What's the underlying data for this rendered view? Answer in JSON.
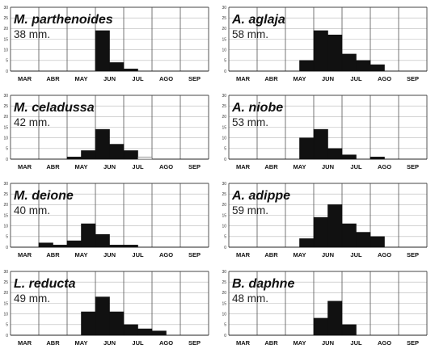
{
  "chart_data": [
    {
      "type": "bar",
      "title": "M. parthenoides",
      "subtitle": "38 mm.",
      "months": [
        "MAR",
        "ABR",
        "MAY",
        "JUN",
        "JUL",
        "AGO",
        "SEP"
      ],
      "yticks": [
        0,
        5,
        10,
        15,
        20,
        25,
        30
      ],
      "ylim": [
        0,
        30
      ],
      "bars": [
        0,
        0,
        0,
        0,
        0,
        0,
        19,
        4,
        1,
        0,
        0,
        0,
        0,
        0
      ]
    },
    {
      "type": "bar",
      "title": "A. aglaja",
      "subtitle": "58 mm.",
      "months": [
        "MAR",
        "ABR",
        "MAY",
        "JUN",
        "JUL",
        "AGO",
        "SEP"
      ],
      "yticks": [
        0,
        5,
        10,
        15,
        20,
        25,
        30
      ],
      "ylim": [
        0,
        30
      ],
      "bars": [
        0,
        0,
        0,
        0,
        0,
        5,
        19,
        17,
        8,
        5,
        3,
        0,
        0,
        0
      ]
    },
    {
      "type": "bar",
      "title": "M. celadussa",
      "subtitle": "42 mm.",
      "months": [
        "MAR",
        "ABR",
        "MAY",
        "JUN",
        "JUL",
        "AGO",
        "SEP"
      ],
      "yticks": [
        0,
        5,
        10,
        15,
        20,
        25,
        30
      ],
      "ylim": [
        0,
        30
      ],
      "bars": [
        0,
        0,
        0,
        0,
        1,
        4,
        14,
        7,
        4,
        1,
        0,
        0,
        0,
        0
      ],
      "open_bars": [
        9
      ]
    },
    {
      "type": "bar",
      "title": "A. niobe",
      "subtitle": "53 mm.",
      "months": [
        "MAR",
        "ABR",
        "MAY",
        "JUN",
        "JUL",
        "AGO",
        "SEP"
      ],
      "yticks": [
        0,
        5,
        10,
        15,
        20,
        25,
        30
      ],
      "ylim": [
        0,
        30
      ],
      "bars": [
        0,
        0,
        0,
        0,
        0,
        10,
        14,
        5,
        2,
        0,
        1,
        0,
        0,
        0
      ]
    },
    {
      "type": "bar",
      "title": "M. deione",
      "subtitle": "40 mm.",
      "months": [
        "MAR",
        "ABR",
        "MAY",
        "JUN",
        "JUL",
        "AGO",
        "SEP"
      ],
      "yticks": [
        0,
        5,
        10,
        15,
        20,
        25,
        30
      ],
      "ylim": [
        0,
        30
      ],
      "bars": [
        0,
        0,
        2,
        1,
        3,
        11,
        6,
        1,
        1,
        0,
        0,
        0,
        0,
        0
      ]
    },
    {
      "type": "bar",
      "title": "A. adippe",
      "subtitle": "59 mm.",
      "months": [
        "MAR",
        "ABR",
        "MAY",
        "JUN",
        "JUL",
        "AGO",
        "SEP"
      ],
      "yticks": [
        0,
        5,
        10,
        15,
        20,
        25,
        30
      ],
      "ylim": [
        0,
        30
      ],
      "bars": [
        0,
        0,
        0,
        0,
        0,
        4,
        14,
        20,
        11,
        7,
        5,
        0,
        0,
        0
      ]
    },
    {
      "type": "bar",
      "title": "L. reducta",
      "subtitle": "49 mm.",
      "months": [
        "MAR",
        "ABR",
        "MAY",
        "JUN",
        "JUL",
        "AGO",
        "SEP"
      ],
      "yticks": [
        0,
        5,
        10,
        15,
        20,
        25,
        30
      ],
      "ylim": [
        0,
        30
      ],
      "bars": [
        0,
        0,
        0,
        0,
        0,
        11,
        18,
        11,
        5,
        3,
        2,
        0,
        0,
        0
      ]
    },
    {
      "type": "bar",
      "title": "B. daphne",
      "subtitle": "48 mm.",
      "months": [
        "MAR",
        "ABR",
        "MAY",
        "JUN",
        "JUL",
        "AGO",
        "SEP"
      ],
      "yticks": [
        0,
        5,
        10,
        15,
        20,
        25,
        30
      ],
      "ylim": [
        0,
        30
      ],
      "bars": [
        0,
        0,
        0,
        0,
        0,
        0,
        8,
        16,
        5,
        0,
        0,
        0,
        0,
        0
      ]
    }
  ]
}
